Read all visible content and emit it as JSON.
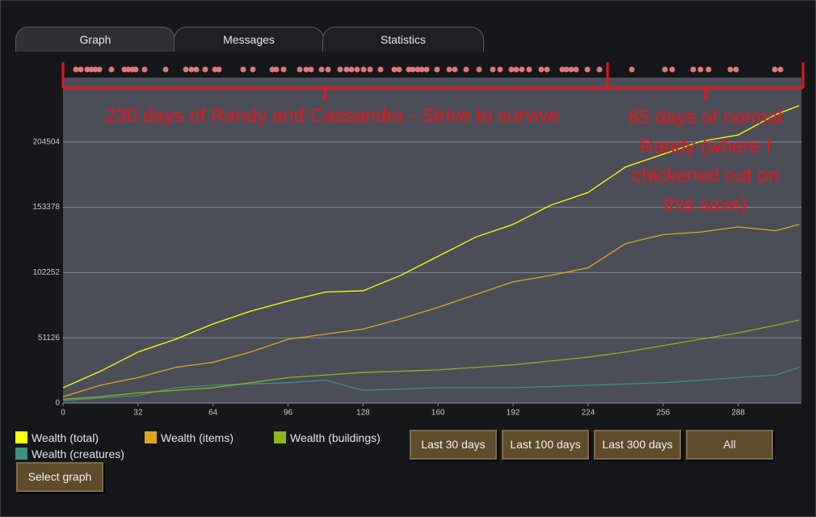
{
  "tabs": [
    "Graph",
    "Messages",
    "Statistics"
  ],
  "chart_data": {
    "type": "line",
    "x": [
      0,
      16,
      32,
      48,
      64,
      80,
      96,
      112,
      128,
      144,
      160,
      176,
      192,
      208,
      224,
      240,
      256,
      272,
      288,
      304,
      314
    ],
    "xlim": [
      0,
      315
    ],
    "xticks": [
      0,
      32,
      64,
      96,
      128,
      160,
      192,
      224,
      256,
      288
    ],
    "ylim": [
      0,
      255000
    ],
    "yticks": [
      0,
      51126,
      102252,
      153378,
      204504
    ],
    "grid": true,
    "series": [
      {
        "name": "Wealth (total)",
        "color": "#ffff00",
        "values": [
          12000,
          25000,
          40000,
          50000,
          62000,
          72000,
          80000,
          87000,
          88000,
          100000,
          115000,
          130000,
          140000,
          155000,
          165000,
          185000,
          195000,
          205000,
          210000,
          226000,
          233000
        ]
      },
      {
        "name": "Wealth (items)",
        "color": "#e0a520",
        "values": [
          5000,
          14000,
          20000,
          28000,
          32000,
          40000,
          50000,
          54000,
          58000,
          66000,
          75000,
          85000,
          95000,
          100000,
          106000,
          125000,
          132000,
          134000,
          138000,
          135000,
          140000
        ]
      },
      {
        "name": "Wealth (buildings)",
        "color": "#8db51b",
        "values": [
          3000,
          5000,
          8000,
          10000,
          12000,
          16000,
          20000,
          22000,
          24000,
          25000,
          26000,
          28000,
          30000,
          33000,
          36000,
          40000,
          45000,
          50000,
          55000,
          61000,
          65000
        ]
      },
      {
        "name": "Wealth (creatures)",
        "color": "#3f9080",
        "values": [
          2000,
          4000,
          6000,
          12000,
          14000,
          15000,
          16000,
          18000,
          10000,
          11000,
          12000,
          12000,
          12000,
          13000,
          14000,
          15000,
          16000,
          18000,
          20000,
          22000,
          28000
        ]
      }
    ],
    "annotations": [
      "230 days of Randy and Cassandra - Strive to survive",
      "85 days of normal Randy (where I chickened out on this save)"
    ]
  },
  "buttons": [
    "Last 30 days",
    "Last 100 days",
    "Last 300 days",
    "All"
  ],
  "select_button": "Select graph"
}
